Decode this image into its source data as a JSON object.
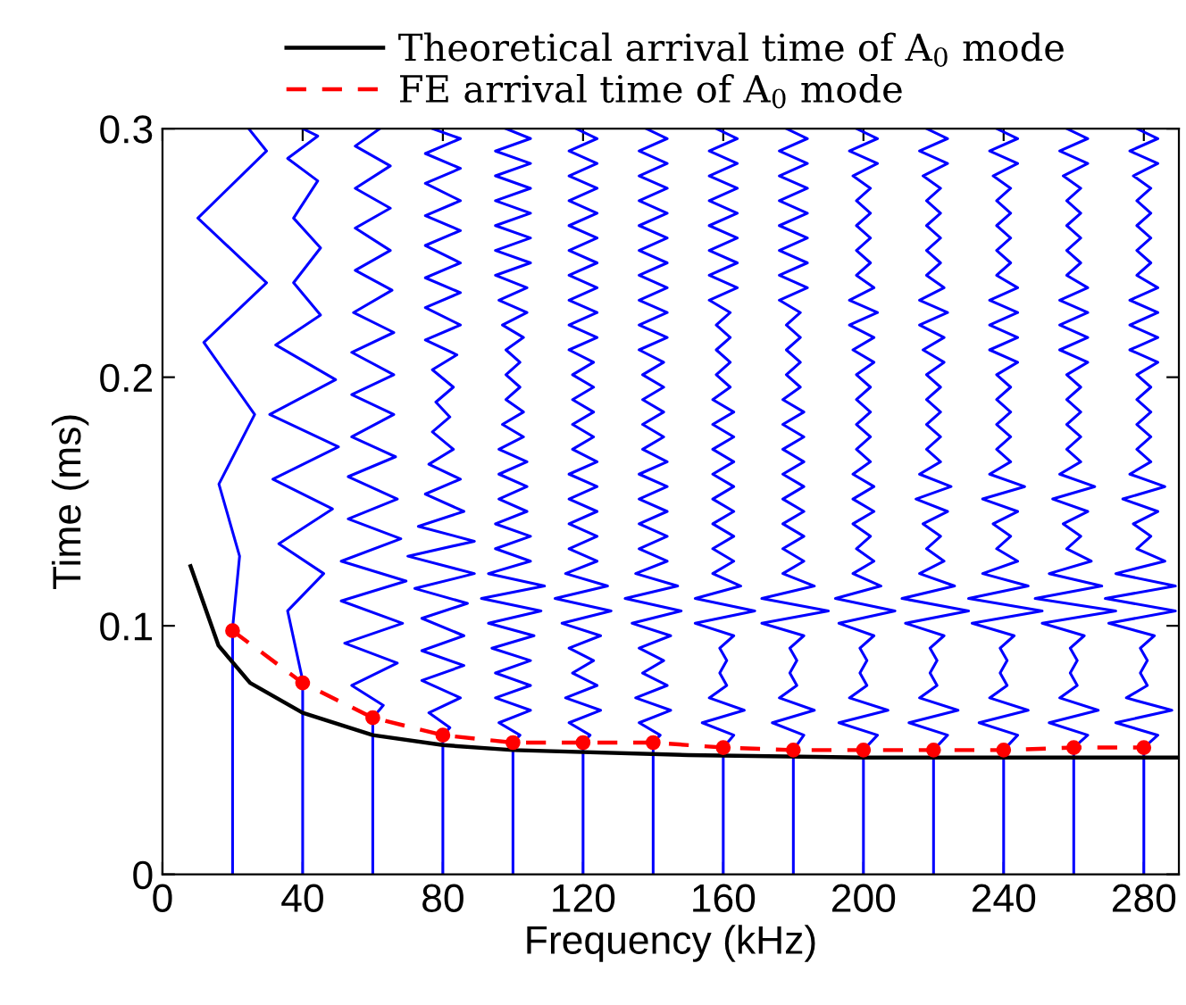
{
  "chart_data": {
    "type": "line",
    "xlabel": "Frequency (kHz)",
    "ylabel": "Time (ms)",
    "xlim": [
      0,
      290
    ],
    "ylim": [
      0,
      0.3
    ],
    "xticks": [
      0,
      40,
      80,
      120,
      160,
      200,
      240,
      280
    ],
    "yticks": [
      0,
      0.1,
      0.2,
      0.3
    ],
    "grid": false,
    "legend": "top",
    "series": [
      {
        "color": "#0000ff",
        "x": [
          20,
          20,
          22.0,
          16.1,
          26.3,
          11.8,
          29.7,
          10.1,
          29.7,
          24.6
        ],
        "values": [
          0,
          0.099,
          0.128,
          0.157,
          0.185,
          0.214,
          0.238,
          0.264,
          0.291,
          0.3
        ]
      },
      {
        "color": "#0000ff",
        "x": [
          40,
          40,
          35.7,
          46.0,
          33.2,
          48.5,
          31.5,
          50.2,
          30.6,
          49.4,
          32.3,
          45.1,
          37.4,
          45.1,
          37.4,
          44.3,
          35.7,
          44.3,
          40
        ],
        "values": [
          0,
          0.078,
          0.106,
          0.121,
          0.133,
          0.147,
          0.159,
          0.172,
          0.185,
          0.199,
          0.213,
          0.225,
          0.238,
          0.252,
          0.264,
          0.279,
          0.288,
          0.297,
          0.3
        ]
      },
      {
        "color": "#0000ff",
        "x": [
          60,
          60,
          63,
          54,
          67,
          52,
          68.5,
          51,
          69.5,
          51,
          68,
          53,
          67,
          53,
          66.5,
          54,
          66,
          54,
          66,
          54,
          66,
          54.5,
          65.5,
          55,
          65,
          55,
          65,
          55,
          65,
          55,
          62
        ],
        "values": [
          0,
          0.063,
          0.068,
          0.076,
          0.085,
          0.093,
          0.101,
          0.11,
          0.118,
          0.126,
          0.135,
          0.143,
          0.151,
          0.16,
          0.168,
          0.176,
          0.185,
          0.193,
          0.201,
          0.21,
          0.218,
          0.226,
          0.235,
          0.243,
          0.251,
          0.26,
          0.268,
          0.276,
          0.285,
          0.293,
          0.3
        ]
      },
      {
        "color": "#0000ff",
        "x": [
          80,
          80,
          82,
          76,
          85,
          74,
          86,
          74,
          86,
          74,
          87,
          72,
          89,
          70,
          89,
          73,
          86,
          75,
          85,
          76,
          83,
          77,
          82,
          78,
          83,
          77,
          84,
          75,
          85,
          75,
          85,
          75,
          85,
          75,
          85,
          75,
          85,
          75,
          85,
          75,
          85,
          77
        ],
        "values": [
          0,
          0.056,
          0.059,
          0.065,
          0.071,
          0.078,
          0.084,
          0.09,
          0.096,
          0.103,
          0.109,
          0.115,
          0.121,
          0.128,
          0.134,
          0.14,
          0.146,
          0.153,
          0.159,
          0.165,
          0.171,
          0.178,
          0.184,
          0.19,
          0.196,
          0.203,
          0.209,
          0.215,
          0.221,
          0.228,
          0.234,
          0.24,
          0.246,
          0.253,
          0.259,
          0.265,
          0.271,
          0.278,
          0.284,
          0.29,
          0.296,
          0.3
        ]
      },
      {
        "color": "#0000ff",
        "x": [
          100,
          100,
          102,
          96,
          105,
          95,
          105,
          95,
          105,
          94,
          106,
          93,
          108,
          91,
          109,
          93,
          105,
          95,
          105,
          95,
          104,
          96,
          104,
          96,
          104,
          96,
          103,
          97,
          103,
          98,
          102,
          98,
          102,
          98,
          103,
          97,
          104,
          96,
          104,
          95,
          105,
          95,
          105,
          95,
          105,
          95,
          105,
          95,
          105,
          95,
          105,
          98
        ],
        "values": [
          0,
          0.053,
          0.056,
          0.061,
          0.066,
          0.071,
          0.076,
          0.081,
          0.086,
          0.091,
          0.096,
          0.101,
          0.106,
          0.111,
          0.116,
          0.121,
          0.126,
          0.131,
          0.136,
          0.141,
          0.146,
          0.151,
          0.156,
          0.161,
          0.166,
          0.171,
          0.176,
          0.181,
          0.186,
          0.191,
          0.196,
          0.201,
          0.206,
          0.211,
          0.216,
          0.221,
          0.226,
          0.231,
          0.236,
          0.241,
          0.246,
          0.251,
          0.256,
          0.261,
          0.266,
          0.271,
          0.276,
          0.281,
          0.286,
          0.291,
          0.296,
          0.3
        ]
      },
      {
        "color": "#0000ff",
        "x": [
          120,
          120,
          122,
          116,
          125,
          115,
          124,
          117,
          123,
          116,
          125,
          114,
          128,
          112,
          127,
          115,
          124,
          116,
          124,
          116,
          124,
          116,
          124,
          116,
          124,
          117,
          123,
          117,
          123,
          117,
          123,
          117,
          123,
          116,
          124,
          116,
          124,
          116,
          124,
          116,
          124,
          116,
          124,
          116,
          124,
          116,
          124,
          116,
          124,
          116,
          124,
          118
        ],
        "values": [
          0,
          0.053,
          0.056,
          0.061,
          0.066,
          0.071,
          0.076,
          0.081,
          0.086,
          0.091,
          0.096,
          0.101,
          0.106,
          0.111,
          0.116,
          0.121,
          0.126,
          0.131,
          0.136,
          0.141,
          0.146,
          0.151,
          0.156,
          0.161,
          0.166,
          0.171,
          0.176,
          0.181,
          0.186,
          0.191,
          0.196,
          0.201,
          0.206,
          0.211,
          0.216,
          0.221,
          0.226,
          0.231,
          0.236,
          0.241,
          0.246,
          0.251,
          0.256,
          0.261,
          0.266,
          0.271,
          0.276,
          0.281,
          0.286,
          0.291,
          0.296,
          0.3
        ]
      },
      {
        "color": "#0000ff",
        "x": [
          140,
          140,
          142,
          136,
          145,
          135,
          144,
          137,
          143,
          136,
          145,
          134,
          148,
          132,
          147,
          135,
          144,
          136,
          144,
          136,
          144,
          136,
          144,
          136,
          144,
          137,
          143,
          137,
          143,
          137,
          143,
          137,
          143,
          136,
          144,
          136,
          144,
          136,
          144,
          136,
          144,
          136,
          144,
          136,
          144,
          136,
          144,
          136,
          144,
          136,
          144,
          138
        ],
        "values": [
          0,
          0.053,
          0.056,
          0.061,
          0.066,
          0.071,
          0.076,
          0.081,
          0.086,
          0.091,
          0.096,
          0.101,
          0.106,
          0.111,
          0.116,
          0.121,
          0.126,
          0.131,
          0.136,
          0.141,
          0.146,
          0.151,
          0.156,
          0.161,
          0.166,
          0.171,
          0.176,
          0.181,
          0.186,
          0.191,
          0.196,
          0.201,
          0.206,
          0.211,
          0.216,
          0.221,
          0.226,
          0.231,
          0.236,
          0.241,
          0.246,
          0.251,
          0.256,
          0.261,
          0.266,
          0.271,
          0.276,
          0.281,
          0.286,
          0.291,
          0.296,
          0.3
        ]
      },
      {
        "color": "#0000ff",
        "x": [
          160,
          160,
          163,
          154,
          166,
          156,
          161,
          159,
          161,
          159,
          163,
          152,
          169,
          152,
          165,
          157,
          163,
          157,
          163,
          157,
          163,
          157,
          163,
          157,
          163,
          157,
          163,
          157,
          163,
          157,
          162,
          158,
          162,
          158,
          162,
          158,
          162,
          156,
          164,
          156,
          164,
          156,
          164,
          156,
          164,
          156,
          164,
          156,
          164,
          156,
          164,
          158
        ],
        "values": [
          0,
          0.051,
          0.056,
          0.061,
          0.066,
          0.071,
          0.076,
          0.081,
          0.086,
          0.091,
          0.096,
          0.101,
          0.106,
          0.111,
          0.116,
          0.121,
          0.126,
          0.131,
          0.136,
          0.141,
          0.146,
          0.151,
          0.156,
          0.161,
          0.166,
          0.171,
          0.176,
          0.181,
          0.186,
          0.191,
          0.196,
          0.201,
          0.206,
          0.211,
          0.216,
          0.221,
          0.226,
          0.231,
          0.236,
          0.241,
          0.246,
          0.251,
          0.256,
          0.261,
          0.266,
          0.271,
          0.276,
          0.281,
          0.286,
          0.291,
          0.296,
          0.3
        ]
      },
      {
        "color": "#0000ff",
        "x": [
          180,
          180,
          183,
          174,
          186,
          176,
          181,
          179,
          181,
          179,
          183,
          171,
          190,
          171,
          186,
          177,
          183,
          177,
          183,
          177,
          183,
          177,
          183,
          177,
          183,
          177,
          183,
          177,
          183,
          177,
          182,
          178,
          182,
          178,
          182,
          178,
          182,
          176,
          184,
          176,
          184,
          176,
          184,
          176,
          184,
          176,
          184,
          176,
          184,
          176,
          184,
          178
        ],
        "values": [
          0,
          0.05,
          0.056,
          0.061,
          0.066,
          0.071,
          0.076,
          0.081,
          0.086,
          0.091,
          0.096,
          0.101,
          0.106,
          0.111,
          0.116,
          0.121,
          0.126,
          0.131,
          0.136,
          0.141,
          0.146,
          0.151,
          0.156,
          0.161,
          0.166,
          0.171,
          0.176,
          0.181,
          0.186,
          0.191,
          0.196,
          0.201,
          0.206,
          0.211,
          0.216,
          0.221,
          0.226,
          0.231,
          0.236,
          0.241,
          0.246,
          0.251,
          0.256,
          0.261,
          0.266,
          0.271,
          0.276,
          0.281,
          0.286,
          0.291,
          0.296,
          0.3
        ]
      },
      {
        "color": "#0000ff",
        "x": [
          200,
          200,
          204,
          193,
          207,
          196,
          201,
          199,
          201,
          199,
          203,
          193,
          209,
          192,
          205,
          197,
          203,
          198,
          202,
          197,
          203,
          197,
          203,
          197,
          202,
          198,
          202,
          198,
          202,
          198,
          202,
          198,
          203,
          197,
          203,
          196,
          204,
          196,
          203,
          198,
          202,
          198,
          202,
          198,
          202,
          198,
          202,
          197,
          204,
          196,
          204,
          198
        ],
        "values": [
          0,
          0.05,
          0.056,
          0.061,
          0.066,
          0.071,
          0.076,
          0.081,
          0.086,
          0.091,
          0.096,
          0.101,
          0.106,
          0.111,
          0.116,
          0.121,
          0.126,
          0.131,
          0.136,
          0.141,
          0.146,
          0.151,
          0.156,
          0.161,
          0.166,
          0.171,
          0.176,
          0.181,
          0.186,
          0.191,
          0.196,
          0.201,
          0.206,
          0.211,
          0.216,
          0.221,
          0.226,
          0.231,
          0.236,
          0.241,
          0.246,
          0.251,
          0.256,
          0.261,
          0.266,
          0.271,
          0.276,
          0.281,
          0.286,
          0.291,
          0.296,
          0.3
        ]
      },
      {
        "color": "#0000ff",
        "x": [
          220,
          220,
          224,
          213,
          227,
          216,
          221,
          219,
          221,
          219,
          223,
          212,
          230,
          211,
          226,
          216,
          223,
          218,
          222,
          217,
          224,
          215,
          225,
          216,
          222,
          218,
          222,
          218,
          222,
          218,
          222,
          218,
          223,
          217,
          223,
          216,
          224,
          216,
          223,
          218,
          222,
          218,
          222,
          218,
          222,
          218,
          222,
          217,
          224,
          216,
          224,
          218
        ],
        "values": [
          0,
          0.05,
          0.056,
          0.061,
          0.066,
          0.071,
          0.076,
          0.081,
          0.086,
          0.091,
          0.096,
          0.101,
          0.106,
          0.111,
          0.116,
          0.121,
          0.126,
          0.131,
          0.136,
          0.141,
          0.146,
          0.151,
          0.156,
          0.161,
          0.166,
          0.171,
          0.176,
          0.181,
          0.186,
          0.191,
          0.196,
          0.201,
          0.206,
          0.211,
          0.216,
          0.221,
          0.226,
          0.231,
          0.236,
          0.241,
          0.246,
          0.251,
          0.256,
          0.261,
          0.266,
          0.271,
          0.276,
          0.281,
          0.286,
          0.291,
          0.296,
          0.3
        ]
      },
      {
        "color": "#0000ff",
        "x": [
          240,
          240,
          244,
          233,
          247,
          236,
          241,
          239,
          241,
          239,
          243,
          231,
          251,
          230,
          247,
          234,
          244,
          238,
          242,
          237,
          244,
          234,
          246,
          236,
          242,
          238,
          242,
          238,
          242,
          238,
          242,
          238,
          244,
          236,
          244,
          236,
          244,
          236,
          244,
          238,
          242,
          238,
          242,
          238,
          242,
          238,
          242,
          237,
          244,
          236,
          244,
          238
        ],
        "values": [
          0,
          0.05,
          0.056,
          0.061,
          0.066,
          0.071,
          0.076,
          0.081,
          0.086,
          0.091,
          0.096,
          0.101,
          0.106,
          0.111,
          0.116,
          0.121,
          0.126,
          0.131,
          0.136,
          0.141,
          0.146,
          0.151,
          0.156,
          0.161,
          0.166,
          0.171,
          0.176,
          0.181,
          0.186,
          0.191,
          0.196,
          0.201,
          0.206,
          0.211,
          0.216,
          0.221,
          0.226,
          0.231,
          0.236,
          0.241,
          0.246,
          0.251,
          0.256,
          0.261,
          0.266,
          0.271,
          0.276,
          0.281,
          0.286,
          0.291,
          0.296,
          0.3
        ]
      },
      {
        "color": "#0000ff",
        "x": [
          260,
          260,
          264,
          253,
          267,
          256,
          261,
          259,
          261,
          259,
          263,
          251,
          272,
          249,
          268,
          253,
          265,
          258,
          262,
          257,
          264,
          254,
          266,
          256,
          262,
          258,
          262,
          258,
          262,
          258,
          262,
          258,
          264,
          256,
          264,
          256,
          264,
          256,
          264,
          258,
          262,
          258,
          262,
          258,
          262,
          258,
          262,
          257,
          264,
          256,
          264,
          258
        ],
        "values": [
          0,
          0.051,
          0.056,
          0.061,
          0.066,
          0.071,
          0.076,
          0.081,
          0.086,
          0.091,
          0.096,
          0.101,
          0.106,
          0.111,
          0.116,
          0.121,
          0.126,
          0.131,
          0.136,
          0.141,
          0.146,
          0.151,
          0.156,
          0.161,
          0.166,
          0.171,
          0.176,
          0.181,
          0.186,
          0.191,
          0.196,
          0.201,
          0.206,
          0.211,
          0.216,
          0.221,
          0.226,
          0.231,
          0.236,
          0.241,
          0.246,
          0.251,
          0.256,
          0.261,
          0.266,
          0.271,
          0.276,
          0.281,
          0.286,
          0.291,
          0.296,
          0.3
        ]
      },
      {
        "color": "#0000ff",
        "x": [
          280,
          280,
          284,
          272,
          288,
          275,
          281,
          279,
          281,
          279,
          283,
          270,
          289,
          269,
          289,
          272,
          286,
          278,
          282,
          277,
          284,
          274,
          286,
          276,
          282,
          278,
          282,
          278,
          282,
          278,
          282,
          278,
          284,
          276,
          284,
          276,
          284,
          276,
          284,
          278,
          282,
          278,
          282,
          278,
          282,
          278,
          282,
          277,
          284,
          276,
          284,
          278
        ],
        "values": [
          0,
          0.051,
          0.056,
          0.061,
          0.066,
          0.071,
          0.076,
          0.081,
          0.086,
          0.091,
          0.096,
          0.101,
          0.106,
          0.111,
          0.116,
          0.121,
          0.126,
          0.131,
          0.136,
          0.141,
          0.146,
          0.151,
          0.156,
          0.161,
          0.166,
          0.171,
          0.176,
          0.181,
          0.186,
          0.191,
          0.196,
          0.201,
          0.206,
          0.211,
          0.216,
          0.221,
          0.226,
          0.231,
          0.236,
          0.241,
          0.246,
          0.251,
          0.256,
          0.261,
          0.266,
          0.271,
          0.276,
          0.281,
          0.286,
          0.291,
          0.296,
          0.3
        ]
      },
      {
        "name": "Theoretical arrival time of A$_{0}$ mode",
        "color": "#000000",
        "line_style": "solid",
        "marker": "none",
        "x": [
          8,
          16,
          25,
          40,
          60,
          80,
          100,
          150,
          200,
          250,
          290
        ],
        "values": [
          0.124,
          0.092,
          0.077,
          0.065,
          0.056,
          0.052,
          0.05,
          0.048,
          0.047,
          0.047,
          0.047
        ]
      },
      {
        "name": "FE arrival time of A$_{0}$ mode",
        "color": "#ff0000",
        "line_style": "dashed",
        "marker": "circle",
        "x": [
          20,
          40,
          60,
          80,
          100,
          120,
          140,
          160,
          180,
          200,
          220,
          240,
          260,
          280
        ],
        "values": [
          0.098,
          0.077,
          0.063,
          0.056,
          0.053,
          0.053,
          0.053,
          0.051,
          0.05,
          0.05,
          0.05,
          0.05,
          0.051,
          0.051
        ]
      }
    ]
  }
}
